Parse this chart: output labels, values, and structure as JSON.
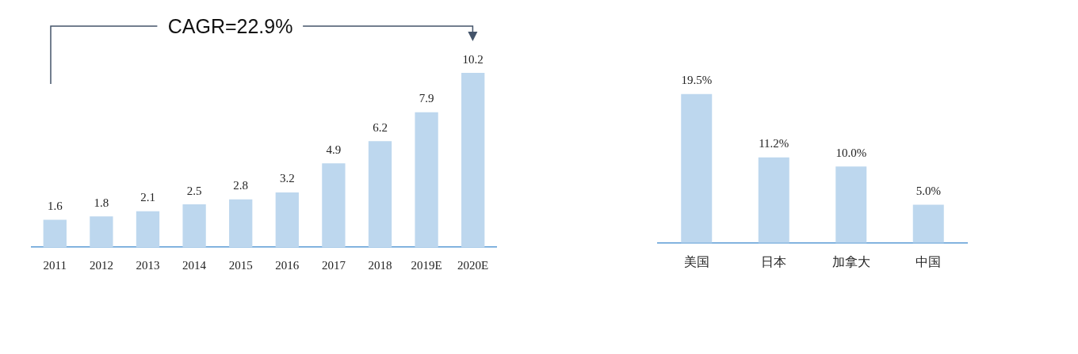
{
  "chart_data": [
    {
      "type": "bar",
      "categories": [
        "2011",
        "2012",
        "2013",
        "2014",
        "2015",
        "2016",
        "2017",
        "2018",
        "2019E",
        "2020E"
      ],
      "values": [
        1.6,
        1.8,
        2.1,
        2.5,
        2.8,
        3.2,
        4.9,
        6.2,
        7.9,
        10.2
      ],
      "color": "#bdd7ee",
      "data_labels": true,
      "tick_labels": "x",
      "annotations": [
        "CAGR=22.9%"
      ]
    },
    {
      "type": "bar",
      "categories": [
        "美国",
        "日本",
        "加拿大",
        "中国"
      ],
      "values": [
        19.5,
        11.2,
        10.0,
        5.0
      ],
      "value_labels": [
        "19.5%",
        "11.2%",
        "10.0%",
        "5.0%"
      ],
      "color": "#bdd7ee",
      "tick_labels": "x"
    }
  ]
}
